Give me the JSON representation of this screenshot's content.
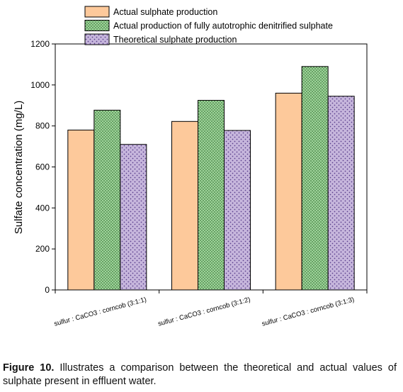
{
  "chart_data": {
    "type": "bar",
    "title": "",
    "xlabel": "",
    "ylabel": "Sulfate concentration (mg/L)",
    "ylim": [
      0,
      1200
    ],
    "yticks": [
      0,
      200,
      400,
      600,
      800,
      1000,
      1200
    ],
    "grid": false,
    "legend_position": "top",
    "categories": [
      "sulfur : CaCO3 : corncob (3:1:1)",
      "sulfur : CaCO3 : corncob (3:1:2)",
      "sulfur : CaCO3 : corncob (3:1:3)"
    ],
    "series": [
      {
        "name": "Actual sulphate production",
        "values": [
          780,
          822,
          960
        ],
        "color": "#fdc99b",
        "pattern": "solid"
      },
      {
        "name": "Actual production of fully autotrophic denitrified sulphate",
        "values": [
          877,
          925,
          1090
        ],
        "color": "#9ed39a",
        "pattern": "dots"
      },
      {
        "name": "Theoretical sulphate production",
        "values": [
          710,
          778,
          945
        ],
        "color": "#c6b6dc",
        "pattern": "dots"
      }
    ]
  },
  "caption": {
    "label": "Figure 10.",
    "text": " Illustrates a comparison between the theoretical and actual values of sulphate present in effluent water."
  }
}
